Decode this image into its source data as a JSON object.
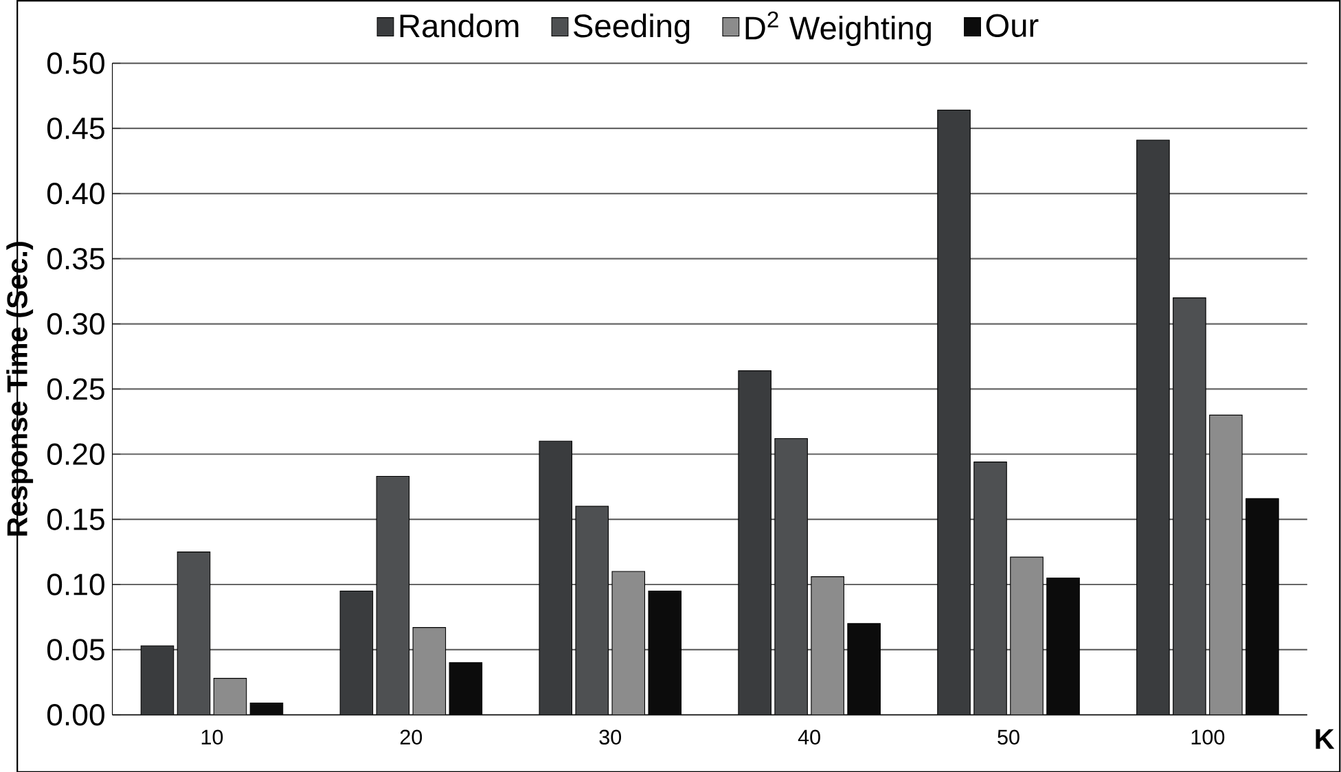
{
  "chart_data": {
    "type": "bar",
    "xlabel": "K",
    "ylabel": "Response Time (Sec.)",
    "categories": [
      "10",
      "20",
      "30",
      "40",
      "50",
      "100"
    ],
    "series": [
      {
        "name": "Random",
        "color": "#3a3c3e",
        "values": [
          0.053,
          0.095,
          0.21,
          0.264,
          0.464,
          0.441
        ]
      },
      {
        "name": "Seeding",
        "color": "#4e5052",
        "values": [
          0.125,
          0.183,
          0.16,
          0.212,
          0.194,
          0.32
        ]
      },
      {
        "name": "D$^{2}$ Weighting",
        "color": "#8c8c8c",
        "values": [
          0.028,
          0.067,
          0.11,
          0.106,
          0.121,
          0.23
        ]
      },
      {
        "name": "Our",
        "color": "#0c0c0c",
        "values": [
          0.009,
          0.04,
          0.095,
          0.07,
          0.105,
          0.166
        ]
      }
    ],
    "ylim": [
      0,
      0.5
    ],
    "yticks": [
      {
        "value": 0,
        "label": "0.00"
      },
      {
        "value": 0.05,
        "label": "0.05"
      },
      {
        "value": 0.1,
        "label": "0.10"
      },
      {
        "value": 0.15,
        "label": "0.15"
      },
      {
        "value": 0.2,
        "label": "0.20"
      },
      {
        "value": 0.25,
        "label": "0.25"
      },
      {
        "value": 0.3,
        "label": "0.30"
      },
      {
        "value": 0.35,
        "label": "0.35"
      },
      {
        "value": 0.4,
        "label": "0.40"
      },
      {
        "value": 0.45,
        "label": "0.45"
      },
      {
        "value": 0.5,
        "label": "0.50"
      }
    ],
    "grid": "y",
    "legend": "top"
  }
}
